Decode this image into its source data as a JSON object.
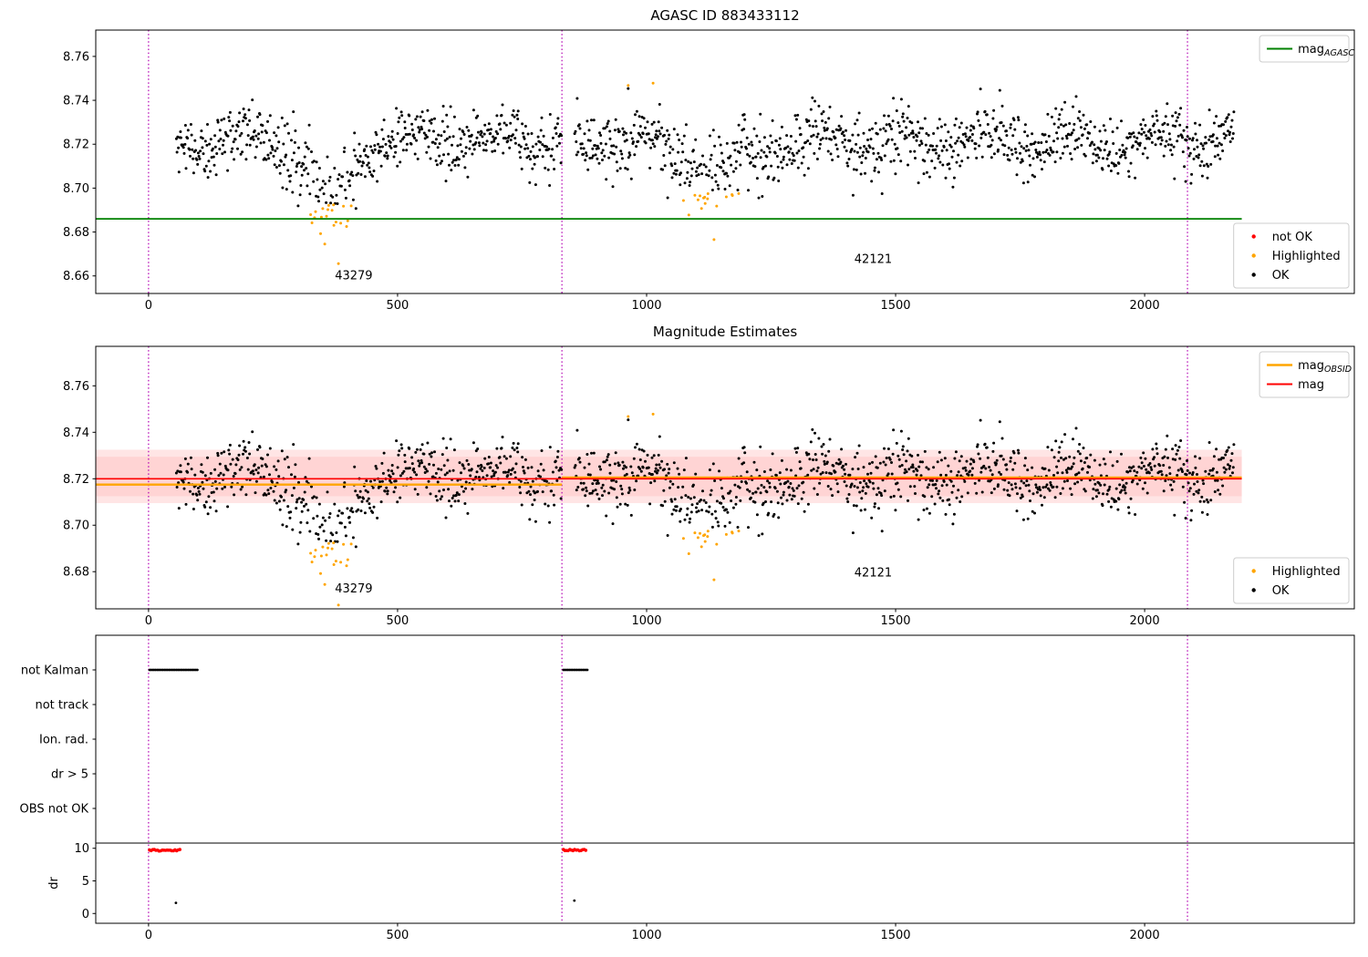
{
  "figure": {
    "background": "#ffffff",
    "accent_colors": {
      "ok_points": "#000000",
      "highlighted_points": "#ffa500",
      "not_ok_points": "#ff0000",
      "mag_agasc_line": "#008000",
      "mag_obsid_line": "#ffa500",
      "mag_line": "#ff0000",
      "obsid_boundary": "#b300b3",
      "band_fill": "rgba(255,0,0,0.10)"
    }
  },
  "chart_data": [
    {
      "id": "agasc",
      "type": "scatter",
      "title": "AGASC ID 883433112",
      "xlim": [
        -106,
        2421
      ],
      "ylim": [
        8.652,
        8.772
      ],
      "xticks": [
        0,
        500,
        1000,
        1500,
        2000
      ],
      "yticks": [
        8.66,
        8.68,
        8.7,
        8.72,
        8.74,
        8.76
      ],
      "ytick_labels": [
        "8.66",
        "8.68",
        "8.70",
        "8.72",
        "8.74",
        "8.76"
      ],
      "vlines": {
        "x": [
          0,
          830,
          2086
        ],
        "color": "#b300b3",
        "style": "dotted"
      },
      "hlines": [
        {
          "name": "mag-agasc",
          "y": 8.686,
          "x0": -106,
          "x1": 2195,
          "color": "#008000",
          "width": 1.8
        }
      ],
      "annotations": [
        {
          "text": "43279",
          "x": 412,
          "y": 8.6585
        },
        {
          "text": "42121",
          "x": 1455,
          "y": 8.666
        }
      ],
      "legends": [
        {
          "pos": "top-right",
          "entries": [
            {
              "label": "mag",
              "sub": "AGASC",
              "color": "#008000",
              "marker": "line",
              "lw": 2
            }
          ]
        },
        {
          "pos": "bottom-right",
          "entries": [
            {
              "label": "not OK",
              "color": "#ff0000",
              "marker": "dot"
            },
            {
              "label": "Highlighted",
              "color": "#ffa500",
              "marker": "dot"
            },
            {
              "label": "OK",
              "color": "#000000",
              "marker": "dot"
            }
          ]
        }
      ]
    },
    {
      "id": "magest",
      "type": "scatter",
      "title": "Magnitude Estimates",
      "xlim": [
        -106,
        2421
      ],
      "ylim": [
        8.664,
        8.777
      ],
      "xticks": [
        0,
        500,
        1000,
        1500,
        2000
      ],
      "yticks": [
        8.68,
        8.7,
        8.72,
        8.74,
        8.76
      ],
      "ytick_labels": [
        "8.68",
        "8.70",
        "8.72",
        "8.74",
        "8.76"
      ],
      "vlines": {
        "x": [
          0,
          830,
          2086
        ],
        "color": "#b300b3",
        "style": "dotted"
      },
      "bands": [
        {
          "y0": 8.7095,
          "y1": 8.7325,
          "x0": -106,
          "x1": 2195,
          "color": "rgba(255,0,0,0.10)"
        },
        {
          "y0": 8.7125,
          "y1": 8.7295,
          "x0": -106,
          "x1": 2195,
          "color": "rgba(255,0,0,0.07)"
        }
      ],
      "hlines": [
        {
          "name": "mag-obsid-43279",
          "y": 8.7175,
          "x0": -106,
          "x1": 830,
          "color": "#ffa500",
          "width": 2.4
        },
        {
          "name": "mag-obsid-42121",
          "y": 8.7205,
          "x0": 830,
          "x1": 2195,
          "color": "#ffa500",
          "width": 2.4
        },
        {
          "name": "mag",
          "y": 8.72,
          "x0": -106,
          "x1": 2195,
          "color": "#ff0000",
          "width": 1.6
        }
      ],
      "annotations": [
        {
          "text": "43279",
          "x": 412,
          "y": 8.671
        },
        {
          "text": "42121",
          "x": 1455,
          "y": 8.678
        }
      ],
      "legends": [
        {
          "pos": "top-right",
          "entries": [
            {
              "label": "mag",
              "sub": "OBSID",
              "color": "#ffa500",
              "marker": "line",
              "lw": 2.6
            },
            {
              "label": "mag",
              "sub": "",
              "color": "#ff0000",
              "marker": "line",
              "lw": 2
            }
          ]
        },
        {
          "pos": "bottom-right",
          "entries": [
            {
              "label": "Highlighted",
              "color": "#ffa500",
              "marker": "dot"
            },
            {
              "label": "OK",
              "color": "#000000",
              "marker": "dot"
            }
          ]
        }
      ]
    },
    {
      "id": "flags",
      "type": "flags",
      "rows": [
        "not Kalman",
        "not track",
        "Ion. rad.",
        "dr > 5",
        "OBS not OK"
      ],
      "flag_marks": [
        {
          "row": 0,
          "x0": 2,
          "x1": 100
        },
        {
          "row": 0,
          "x0": 833,
          "x1": 883
        }
      ],
      "xlim": [
        -106,
        2421
      ],
      "xticks": [
        0,
        500,
        1000,
        1500,
        2000
      ],
      "vlines": {
        "x": [
          0,
          830,
          2086
        ],
        "color": "#b300b3",
        "style": "dotted"
      },
      "dr_axis": {
        "label": "dr",
        "ticks": [
          0,
          5,
          10
        ],
        "ylim": [
          -1.5,
          10.8
        ],
        "red_segments": [
          {
            "x0": 2,
            "x1": 66,
            "y": 9.7
          },
          {
            "x0": 833,
            "x1": 880,
            "y": 9.7
          }
        ],
        "model": {
          "segments": [
            {
              "x0": 55,
              "x1": 830,
              "step": 4.2
            },
            {
              "x0": 855,
              "x1": 2100,
              "step": 4.2
            }
          ],
          "base": 0.45,
          "amp": 1.5,
          "period": 95,
          "noise": 0.25
        }
      }
    }
  ],
  "scatter_model": {
    "seed": 20240613,
    "obsids": [
      {
        "label": "43279",
        "x0": 55,
        "x1": 830,
        "n": 580,
        "phase": 0.7
      },
      {
        "label": "42121",
        "x0": 855,
        "x1": 2180,
        "n": 1000,
        "phase": 2.1
      }
    ],
    "base_mean": 8.7215,
    "sigma": 0.0068,
    "wobble_amp": 0.0045,
    "wobble_period": 170,
    "dips": [
      {
        "center": 365,
        "width": 38,
        "depth": 0.03,
        "extra_sigma": 0.004
      },
      {
        "center": 1135,
        "width": 62,
        "depth": 0.0165,
        "extra_sigma": 0.003
      }
    ],
    "highlight_rules": [
      {
        "x0": 312,
        "x1": 412,
        "ymax": 8.6925
      },
      {
        "x0": 1065,
        "x1": 1205,
        "ymax": 8.699
      },
      {
        "x0": 930,
        "x1": 1050,
        "ymin": 8.7455
      }
    ],
    "extra_points": [
      {
        "x": 963,
        "y": 8.7468
      },
      {
        "x": 1013,
        "y": 8.7478
      },
      {
        "x": 1160,
        "y": 8.696
      },
      {
        "x": 1185,
        "y": 8.6975
      }
    ]
  }
}
